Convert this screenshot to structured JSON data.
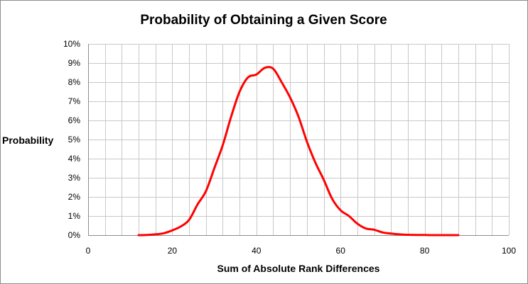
{
  "chart_data": {
    "type": "line",
    "title": "Probability of Obtaining a Given Score",
    "xlabel": "Sum of Absolute Rank Differences",
    "ylabel": "Probability",
    "xlim": [
      0,
      100
    ],
    "ylim": [
      0,
      0.1
    ],
    "x_ticks": [
      "0",
      "20",
      "40",
      "60",
      "80",
      "100"
    ],
    "y_ticks": [
      "0%",
      "1%",
      "2%",
      "3%",
      "4%",
      "5%",
      "6%",
      "7%",
      "8%",
      "9%",
      "10%"
    ],
    "grid": true,
    "legend": "none",
    "series_color": "#ff0000",
    "series": [
      {
        "x": [
          12,
          14,
          16,
          18,
          20,
          22,
          24,
          26,
          28,
          30,
          32,
          34,
          36,
          38,
          40,
          42,
          44,
          46,
          48,
          50,
          52,
          54,
          56,
          58,
          60,
          62,
          64,
          66,
          68,
          70,
          72,
          74,
          76,
          78,
          80,
          82,
          84,
          86,
          88
        ],
        "y": [
          0.0,
          0.0001,
          0.0004,
          0.001,
          0.0025,
          0.0045,
          0.008,
          0.016,
          0.023,
          0.035,
          0.047,
          0.062,
          0.075,
          0.0825,
          0.084,
          0.0875,
          0.087,
          0.08,
          0.072,
          0.062,
          0.049,
          0.038,
          0.029,
          0.019,
          0.013,
          0.01,
          0.006,
          0.0035,
          0.0028,
          0.0014,
          0.0008,
          0.0004,
          0.0002,
          0.0001,
          0.0001,
          0.0,
          0.0,
          0.0,
          0.0
        ]
      }
    ]
  }
}
